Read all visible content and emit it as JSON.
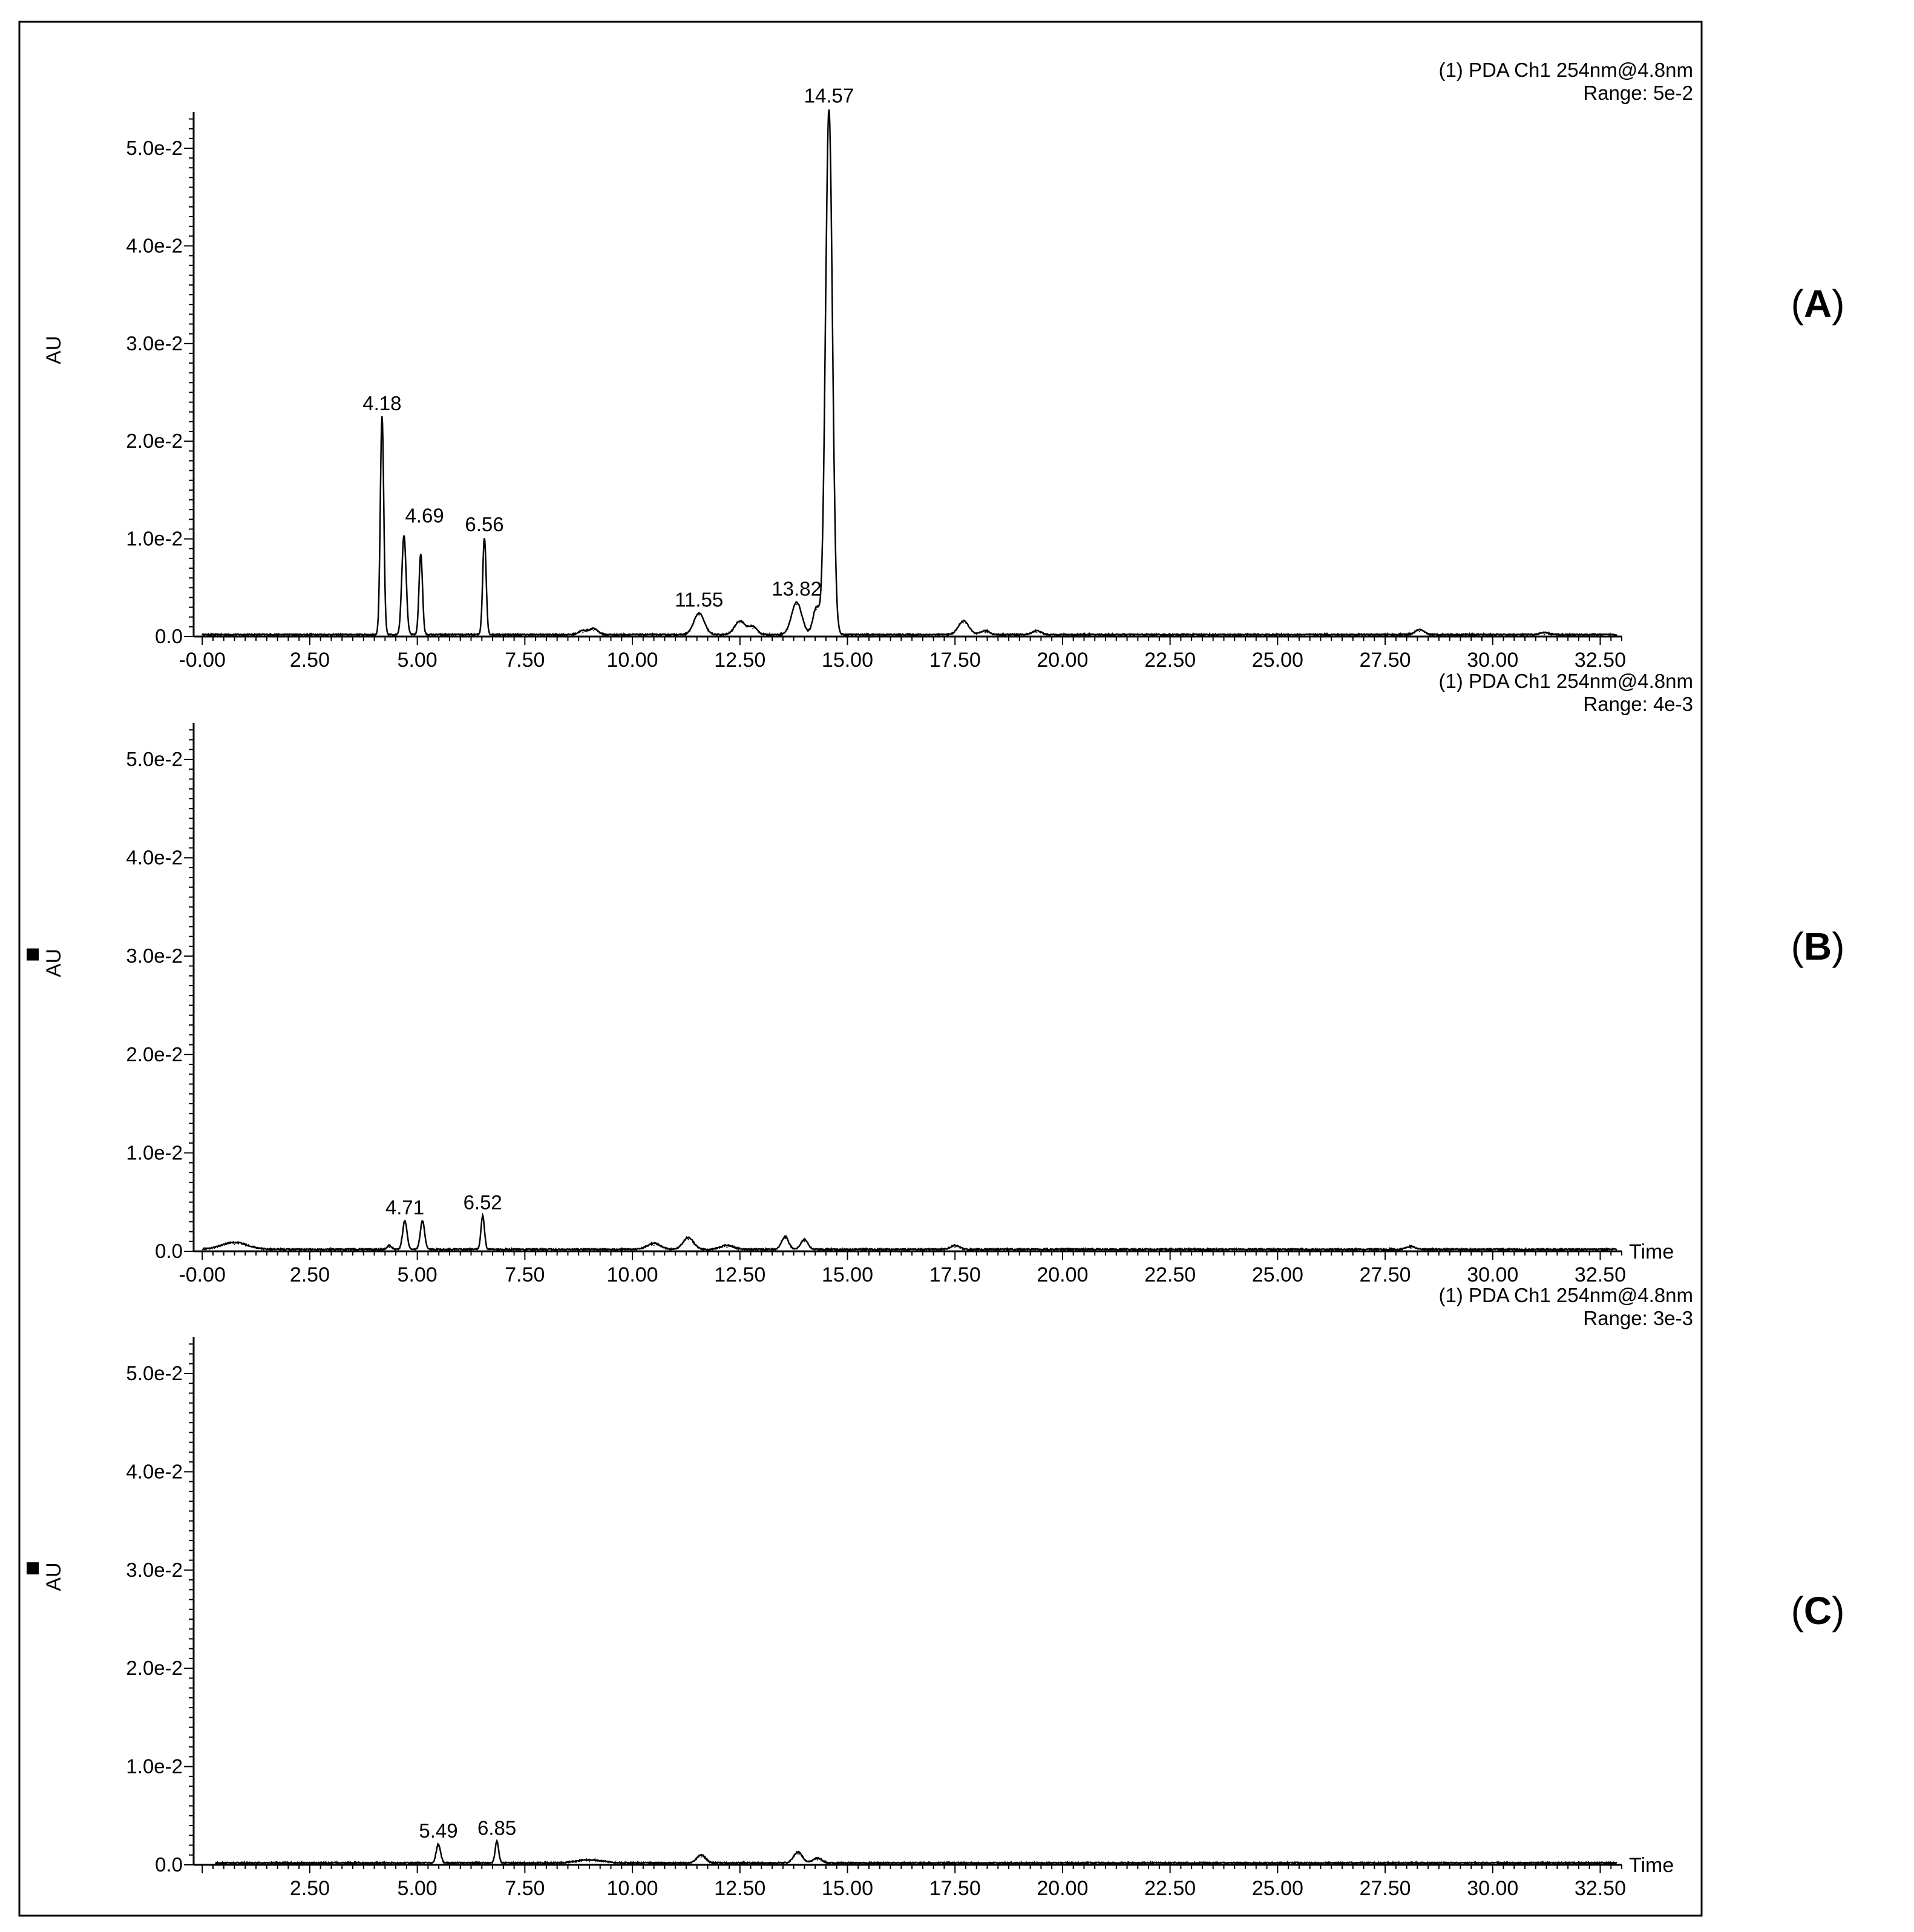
{
  "panel_letters": [
    "A",
    "B",
    "C"
  ],
  "chart_data": [
    {
      "type": "line",
      "panel": "A",
      "ylabel": "AU",
      "xlabel": "",
      "header_line1": "(1) PDA Ch1 254nm@4.8nm",
      "header_line2": "Range: 5e-2",
      "xlim": [
        -0.2,
        33.0
      ],
      "ylim": [
        0,
        0.054
      ],
      "x_ticks": [
        "-0.00",
        "2.50",
        "5.00",
        "7.50",
        "10.00",
        "12.50",
        "15.00",
        "17.50",
        "20.00",
        "22.50",
        "25.00",
        "27.50",
        "30.00",
        "32.50"
      ],
      "y_ticks": [
        "0.0",
        "1.0e-2",
        "2.0e-2",
        "3.0e-2",
        "4.0e-2",
        "5.0e-2"
      ],
      "show_y_marker": false,
      "peaks": [
        {
          "x": 4.18,
          "y": 0.0223,
          "w": 0.04,
          "label": "4.18"
        },
        {
          "x": 4.69,
          "y": 0.0102,
          "w": 0.05,
          "label": "4.69"
        },
        {
          "x": 5.08,
          "y": 0.0083,
          "w": 0.04
        },
        {
          "x": 6.56,
          "y": 0.0099,
          "w": 0.04,
          "label": "6.56"
        },
        {
          "x": 8.85,
          "y": 0.0004,
          "w": 0.1
        },
        {
          "x": 9.1,
          "y": 0.0006,
          "w": 0.1
        },
        {
          "x": 11.55,
          "y": 0.0022,
          "w": 0.12,
          "label": "11.55"
        },
        {
          "x": 12.5,
          "y": 0.0014,
          "w": 0.12
        },
        {
          "x": 12.8,
          "y": 0.0008,
          "w": 0.1
        },
        {
          "x": 13.82,
          "y": 0.0033,
          "w": 0.12,
          "label": "13.82"
        },
        {
          "x": 14.28,
          "y": 0.0028,
          "w": 0.08
        },
        {
          "x": 14.57,
          "y": 0.0538,
          "w": 0.08,
          "label": "14.57"
        },
        {
          "x": 17.7,
          "y": 0.0014,
          "w": 0.12
        },
        {
          "x": 18.2,
          "y": 0.0004,
          "w": 0.1
        },
        {
          "x": 19.4,
          "y": 0.0004,
          "w": 0.1
        },
        {
          "x": 28.3,
          "y": 0.0005,
          "w": 0.1
        },
        {
          "x": 31.2,
          "y": 0.0002,
          "w": 0.1
        }
      ]
    },
    {
      "type": "line",
      "panel": "B",
      "ylabel": "AU",
      "xlabel": "Time",
      "header_line1": "(1) PDA Ch1 254nm@4.8nm",
      "header_line2": "Range: 4e-3",
      "xlim": [
        -0.2,
        33.0
      ],
      "ylim": [
        0,
        0.054
      ],
      "x_ticks": [
        "-0.00",
        "2.50",
        "5.00",
        "7.50",
        "10.00",
        "12.50",
        "15.00",
        "17.50",
        "20.00",
        "22.50",
        "25.00",
        "27.50",
        "30.00",
        "32.50"
      ],
      "y_ticks": [
        "0.0",
        "1.0e-2",
        "2.0e-2",
        "3.0e-2",
        "4.0e-2",
        "5.0e-2"
      ],
      "show_y_marker": true,
      "peaks": [
        {
          "x": 0.75,
          "y": 0.0007,
          "w": 0.3
        },
        {
          "x": 4.35,
          "y": 0.0004,
          "w": 0.05
        },
        {
          "x": 4.71,
          "y": 0.0029,
          "w": 0.05,
          "label": "4.71"
        },
        {
          "x": 5.12,
          "y": 0.0029,
          "w": 0.05
        },
        {
          "x": 6.52,
          "y": 0.0034,
          "w": 0.04,
          "label": "6.52"
        },
        {
          "x": 10.5,
          "y": 0.0006,
          "w": 0.15
        },
        {
          "x": 11.3,
          "y": 0.0012,
          "w": 0.12
        },
        {
          "x": 12.2,
          "y": 0.0004,
          "w": 0.15
        },
        {
          "x": 13.55,
          "y": 0.0013,
          "w": 0.08
        },
        {
          "x": 14.0,
          "y": 0.001,
          "w": 0.08
        },
        {
          "x": 17.5,
          "y": 0.0004,
          "w": 0.1
        },
        {
          "x": 28.1,
          "y": 0.0003,
          "w": 0.1
        }
      ]
    },
    {
      "type": "line",
      "panel": "C",
      "ylabel": "AU",
      "xlabel": "Time",
      "header_line1": "(1) PDA Ch1 254nm@4.8nm",
      "header_line2": "Range: 3e-3",
      "xlim": [
        -0.2,
        33.0
      ],
      "ylim": [
        0,
        0.054
      ],
      "x_ticks": [
        "2.50",
        "5.00",
        "7.50",
        "10.00",
        "12.50",
        "15.00",
        "17.50",
        "20.00",
        "22.50",
        "25.00",
        "27.50",
        "30.00",
        "32.50"
      ],
      "y_ticks": [
        "0.0",
        "1.0e-2",
        "2.0e-2",
        "3.0e-2",
        "4.0e-2",
        "5.0e-2"
      ],
      "show_y_marker": true,
      "peaks": [
        {
          "x": 5.49,
          "y": 0.0019,
          "w": 0.05,
          "label": "5.49"
        },
        {
          "x": 6.85,
          "y": 0.0022,
          "w": 0.04,
          "label": "6.85"
        },
        {
          "x": 9.0,
          "y": 0.0003,
          "w": 0.3
        },
        {
          "x": 11.6,
          "y": 0.0008,
          "w": 0.1
        },
        {
          "x": 13.85,
          "y": 0.0011,
          "w": 0.1
        },
        {
          "x": 14.3,
          "y": 0.0005,
          "w": 0.1
        }
      ]
    }
  ]
}
